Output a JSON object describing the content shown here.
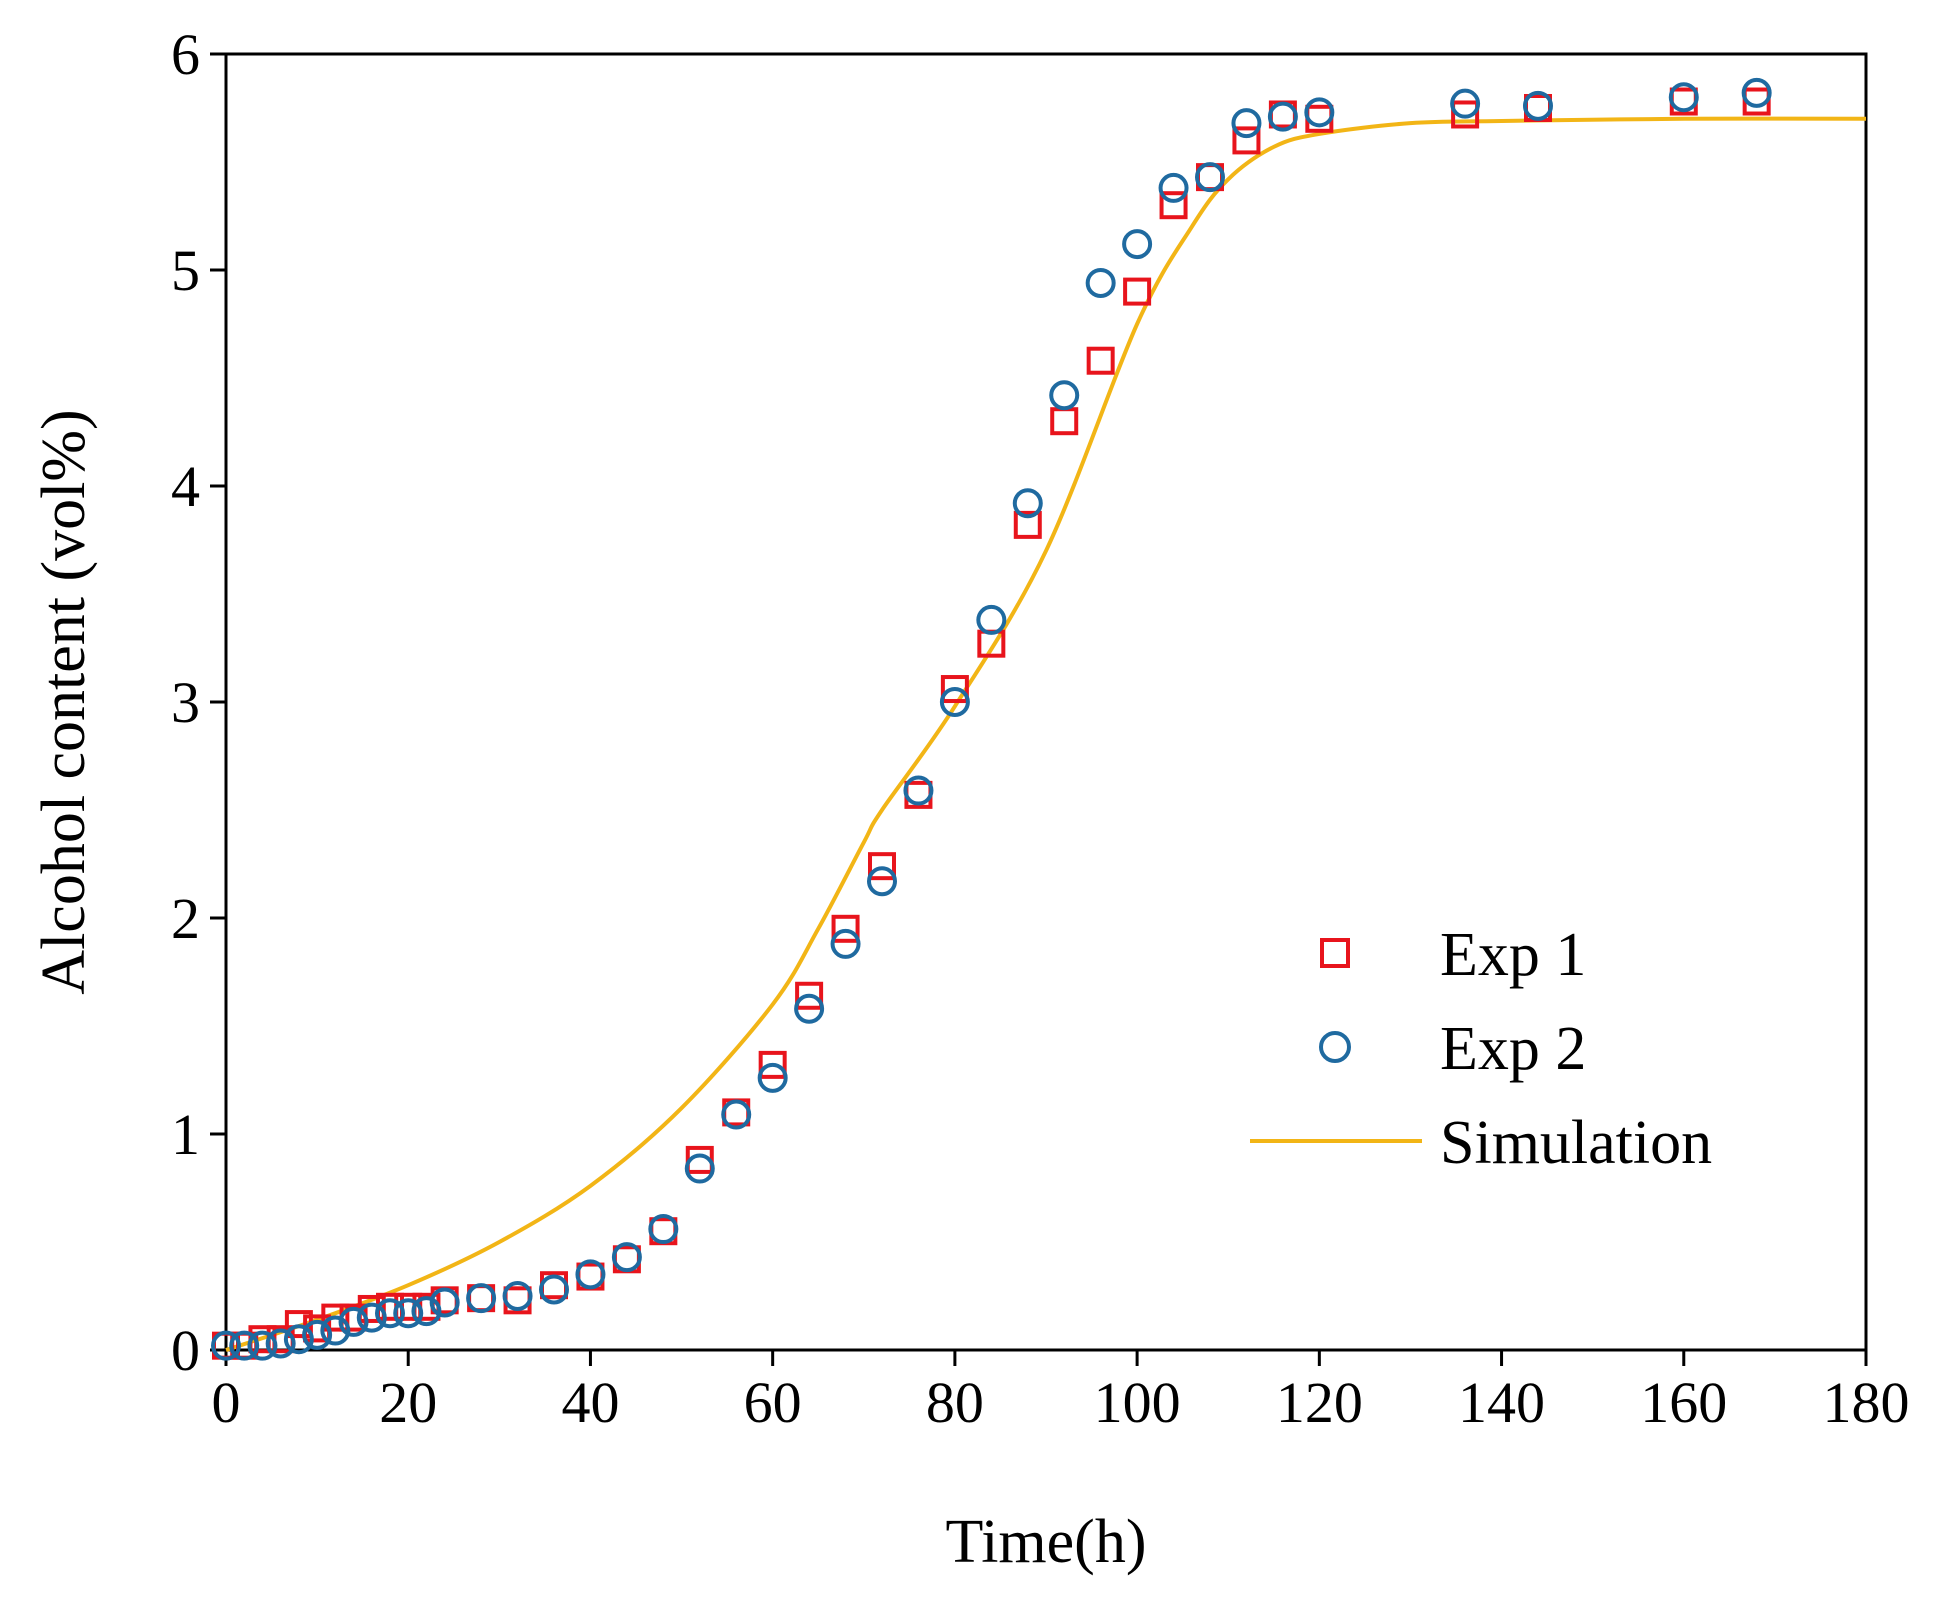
{
  "chart_data": {
    "type": "scatter",
    "xlabel": "Time(h)",
    "ylabel": "Alcohol content (vol%)",
    "xlim": [
      0,
      180
    ],
    "ylim": [
      0,
      6
    ],
    "xticks": [
      "0",
      "20",
      "40",
      "60",
      "80",
      "100",
      "120",
      "140",
      "160",
      "180"
    ],
    "yticks": [
      "0",
      "1",
      "2",
      "3",
      "4",
      "5",
      "6"
    ],
    "grid": false,
    "legend_position": "bottom-right",
    "colors": {
      "exp1": "#e8141c",
      "exp2": "#1f6aa0",
      "simulation": "#f2b516"
    },
    "series": [
      {
        "name": "Exp 1",
        "marker": "square",
        "x": [
          0,
          2,
          4,
          6,
          8,
          10,
          12,
          14,
          16,
          18,
          20,
          22,
          24,
          28,
          32,
          36,
          40,
          44,
          48,
          52,
          56,
          60,
          64,
          68,
          72,
          76,
          80,
          84,
          88,
          92,
          96,
          100,
          104,
          108,
          112,
          116,
          120,
          136,
          144,
          160,
          168
        ],
        "y": [
          0.02,
          0.02,
          0.05,
          0.05,
          0.12,
          0.1,
          0.15,
          0.15,
          0.19,
          0.2,
          0.2,
          0.2,
          0.23,
          0.24,
          0.23,
          0.3,
          0.34,
          0.42,
          0.55,
          0.88,
          1.1,
          1.32,
          1.64,
          1.95,
          2.24,
          2.57,
          3.06,
          3.27,
          3.82,
          4.3,
          4.58,
          4.9,
          5.3,
          5.43,
          5.6,
          5.72,
          5.7,
          5.72,
          5.75,
          5.78,
          5.78
        ]
      },
      {
        "name": "Exp 2",
        "marker": "circle",
        "x": [
          0,
          2,
          4,
          6,
          8,
          10,
          12,
          14,
          16,
          18,
          20,
          22,
          24,
          28,
          32,
          36,
          40,
          44,
          48,
          52,
          56,
          60,
          64,
          68,
          72,
          76,
          80,
          84,
          88,
          92,
          96,
          100,
          104,
          108,
          112,
          116,
          120,
          136,
          144,
          160,
          168
        ],
        "y": [
          0.02,
          0.02,
          0.02,
          0.03,
          0.05,
          0.07,
          0.09,
          0.13,
          0.15,
          0.17,
          0.17,
          0.18,
          0.22,
          0.24,
          0.25,
          0.28,
          0.35,
          0.43,
          0.56,
          0.84,
          1.09,
          1.26,
          1.58,
          1.88,
          2.17,
          2.59,
          3.0,
          3.38,
          3.92,
          4.42,
          4.94,
          5.12,
          5.38,
          5.43,
          5.68,
          5.71,
          5.73,
          5.77,
          5.76,
          5.8,
          5.82
        ]
      },
      {
        "name": "Simulation",
        "marker": "line",
        "x": [
          0,
          10,
          20,
          30,
          40,
          50,
          60,
          65,
          70,
          72,
          80,
          90,
          100,
          106,
          110,
          115,
          120,
          130,
          140,
          160,
          180
        ],
        "y": [
          0.0,
          0.14,
          0.3,
          0.5,
          0.76,
          1.12,
          1.6,
          1.95,
          2.35,
          2.5,
          2.98,
          3.7,
          4.75,
          5.2,
          5.42,
          5.57,
          5.63,
          5.68,
          5.69,
          5.7,
          5.7
        ]
      }
    ]
  }
}
